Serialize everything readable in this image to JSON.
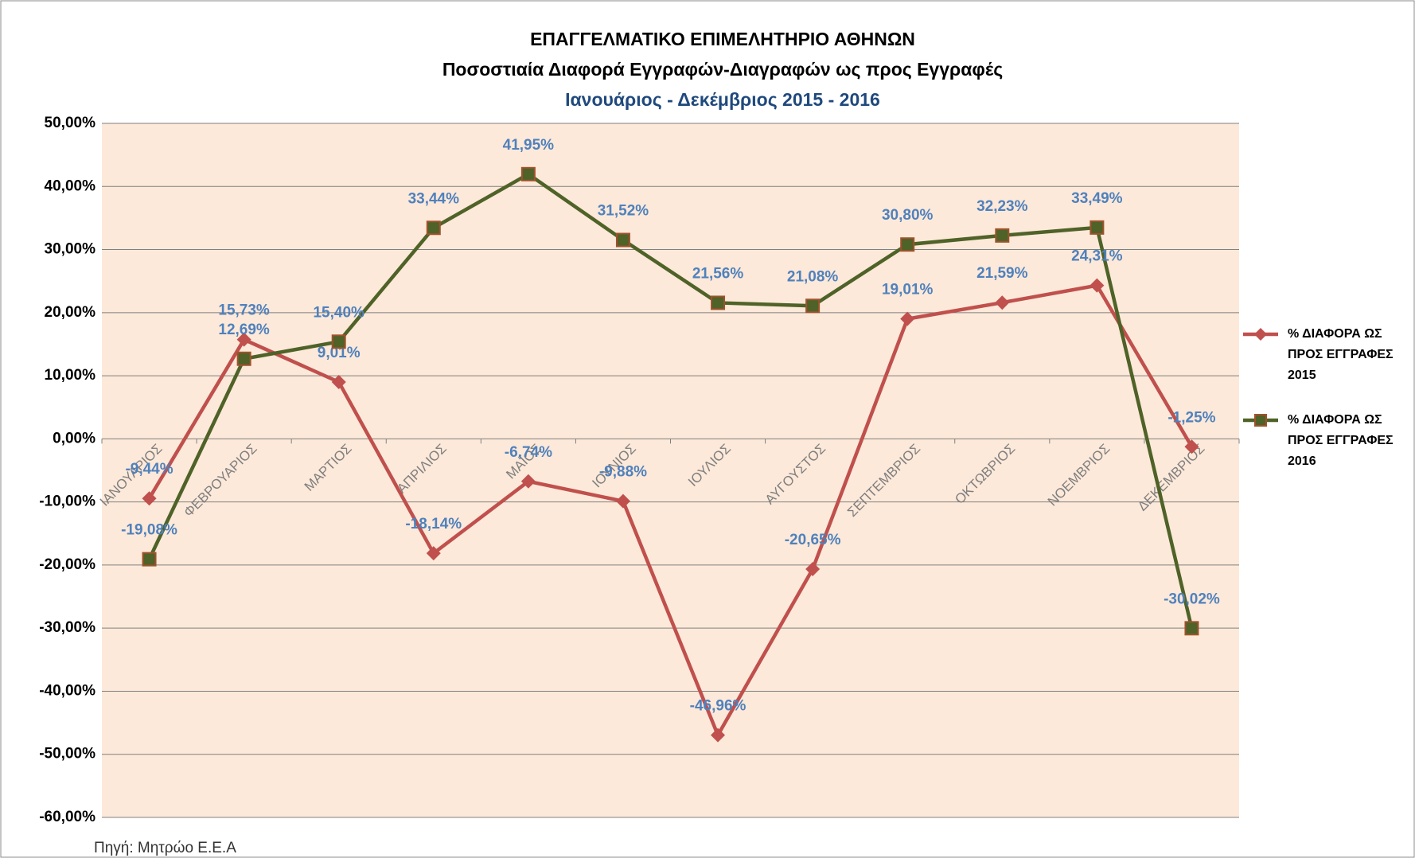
{
  "chart_data": {
    "type": "line",
    "title": "ΕΠΑΓΓΕΛΜΑΤΙΚΟ ΕΠΙΜΕΛΗΤΗΡΙΟ ΑΘΗΝΩΝ",
    "subtitle": "Ποσοστιαία Διαφορά Εγγραφών-Διαγραφών ως προς Εγγραφές",
    "period": "Ιανουάριος - Δεκέμβριος 2015 - 2016",
    "source": "Πηγή: Μητρώο Ε.Ε.Α",
    "categories": [
      "ΙΑΝΟΥΑΡΙΟΣ",
      "ΦΕΒΡΟΥΑΡΙΟΣ",
      "ΜΑΡΤΙΟΣ",
      "ΑΠΡΙΛΙΟΣ",
      "ΜΑΪΟΣ",
      "ΙΟΥΝΙΟΣ",
      "ΙΟΥΛΙΟΣ",
      "ΑΥΓΟΥΣΤΟΣ",
      "ΣΕΠΤΕΜΒΡΙΟΣ",
      "ΟΚΤΩΒΡΙΟΣ",
      "ΝΟΕΜΒΡΙΟΣ",
      "ΔΕΚΕΜΒΡΙΟΣ"
    ],
    "series": [
      {
        "name": "% ΔΙΑΦΟΡΑ ΩΣ ΠΡΟΣ ΕΓΓΡΑΦΕΣ 2015",
        "color": "#c0504d",
        "marker": "diamond",
        "values": [
          -9.44,
          15.73,
          9.01,
          -18.14,
          -6.74,
          -9.88,
          -46.96,
          -20.65,
          19.01,
          21.59,
          24.31,
          -1.25
        ],
        "value_labels": [
          "-9,44%",
          "15,73%",
          "9,01%",
          "-18,14%",
          "-6,74%",
          "-9,88%",
          "-46,96%",
          "-20,65%",
          "19,01%",
          "21,59%",
          "24,31%",
          "-1,25%"
        ]
      },
      {
        "name": "% ΔΙΑΦΟΡΑ ΩΣ ΠΡΟΣ ΕΓΓΡΑΦΕΣ 2016",
        "color": "#4f6228",
        "marker": "square",
        "values": [
          -19.08,
          12.69,
          15.4,
          33.44,
          41.95,
          31.52,
          21.56,
          21.08,
          30.8,
          32.23,
          33.49,
          -30.02
        ],
        "value_labels": [
          "-19,08%",
          "12,69%",
          "15,40%",
          "33,44%",
          "41,95%",
          "31,52%",
          "21,56%",
          "21,08%",
          "30,80%",
          "32,23%",
          "33,49%",
          "-30,02%"
        ]
      }
    ],
    "ylim": [
      -60,
      50
    ],
    "yticks": [
      {
        "value": -60,
        "label": "-60,00%"
      },
      {
        "value": -50,
        "label": "-50,00%"
      },
      {
        "value": -40,
        "label": "-40,00%"
      },
      {
        "value": -30,
        "label": "-30,00%"
      },
      {
        "value": -20,
        "label": "-20,00%"
      },
      {
        "value": -10,
        "label": "-10,00%"
      },
      {
        "value": 0,
        "label": "0,00%"
      },
      {
        "value": 10,
        "label": "10,00%"
      },
      {
        "value": 20,
        "label": "20,00%"
      },
      {
        "value": 30,
        "label": "30,00%"
      },
      {
        "value": 40,
        "label": "40,00%"
      },
      {
        "value": 50,
        "label": "50,00%"
      }
    ],
    "grid": true,
    "legend": "right"
  }
}
